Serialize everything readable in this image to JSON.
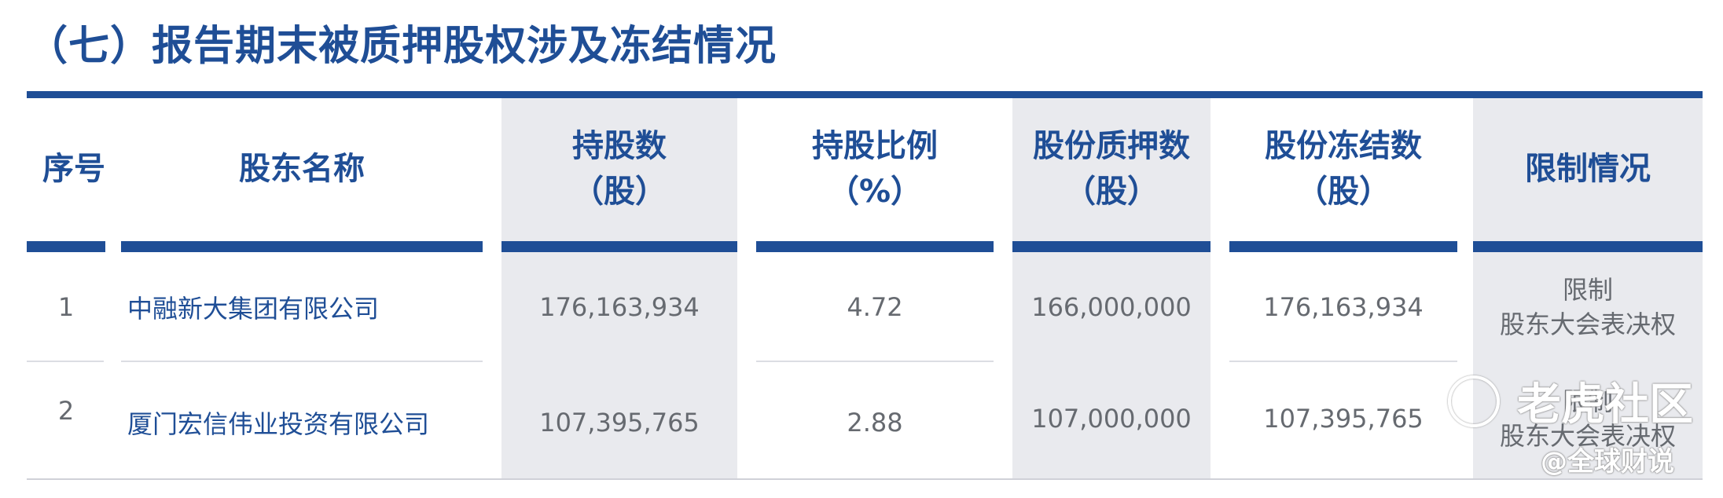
{
  "section_title": "（七）报告期末被质押股权涉及冻结情况",
  "headers": {
    "seq": "序号",
    "name": "股东名称",
    "shares_l1": "持股数",
    "shares_l2": "（股）",
    "ratio_l1": "持股比例",
    "ratio_l2": "（%）",
    "pledged_l1": "股份质押数",
    "pledged_l2": "（股）",
    "frozen_l1": "股份冻结数",
    "frozen_l2": "（股）",
    "restriction": "限制情况"
  },
  "rows": [
    {
      "seq": "1",
      "name": "中融新大集团有限公司",
      "shares": "176,163,934",
      "ratio": "4.72",
      "pledged": "166,000,000",
      "frozen": "176,163,934",
      "restriction_l1": "限制",
      "restriction_l2": "股东大会表决权"
    },
    {
      "seq": "2",
      "name": "厦门宏信伟业投资有限公司",
      "shares": "107,395,765",
      "ratio": "2.88",
      "pledged": "107,000,000",
      "frozen": "107,395,765",
      "restriction_l1": "限制",
      "restriction_l2": "股东大会表决权"
    }
  ],
  "watermark": {
    "site": "老虎社区",
    "handle": "@全球财说"
  },
  "colors": {
    "accent": "#1f4e96",
    "shade": "#e9eaee",
    "body_text": "#666a70"
  }
}
